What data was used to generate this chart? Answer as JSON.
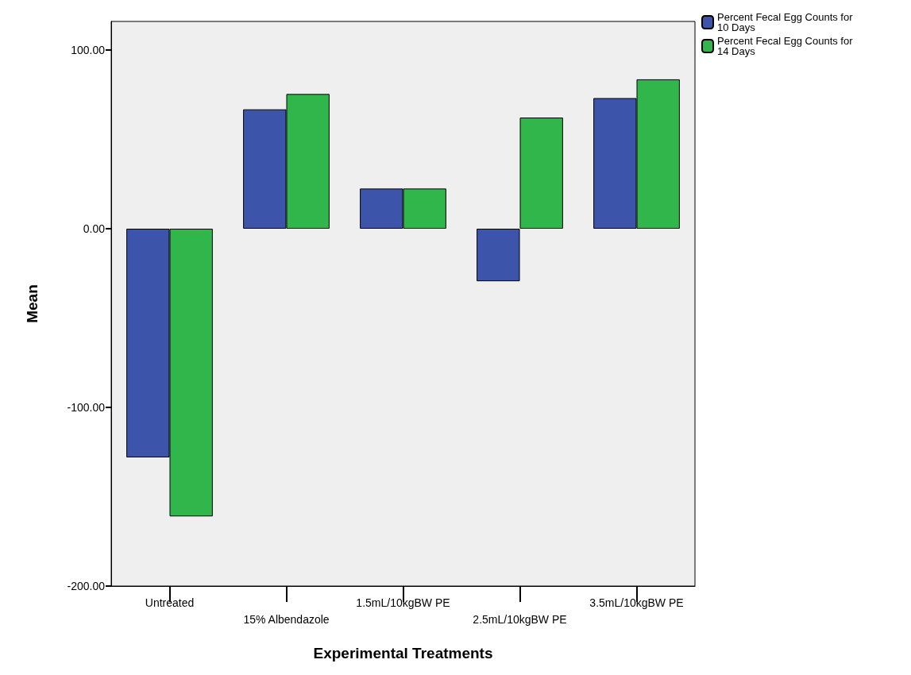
{
  "chart_data": {
    "type": "bar",
    "xlabel": "Experimental Treatments",
    "ylabel": "Mean",
    "categories": [
      "Untreated",
      "15% Albendazole",
      "1.5mL/10kgBW PE",
      "2.5mL/10kgBW PE",
      "3.5mL/10kgBW PE"
    ],
    "series": [
      {
        "name": "Percent Fecal Egg Counts for 10 Days",
        "color": "#3c55ab",
        "values": [
          -128,
          66.8,
          22.5,
          -29.4,
          73.1
        ]
      },
      {
        "name": "Percent Fecal Egg Counts for 14 Days",
        "color": "#30b64a",
        "values": [
          -161,
          75.4,
          22.5,
          62.2,
          83.6
        ]
      }
    ],
    "ylim": [
      -200,
      116
    ],
    "yticks": [
      {
        "value": -200,
        "label": "-200.00"
      },
      {
        "value": -100,
        "label": "-100.00"
      },
      {
        "value": 0,
        "label": "0.00"
      },
      {
        "value": 100,
        "label": "100.00"
      }
    ],
    "grid": false,
    "legend": "top right"
  }
}
